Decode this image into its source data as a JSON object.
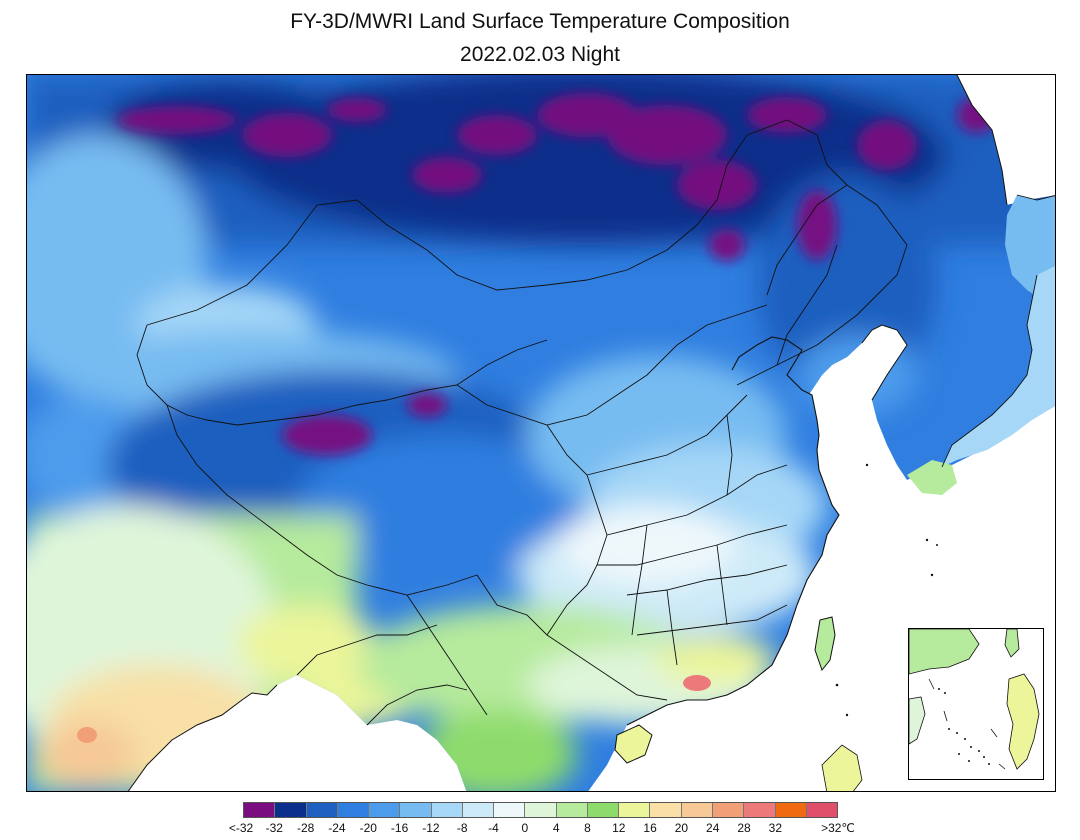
{
  "title": "FY-3D/MWRI Land Surface Temperature Composition",
  "subtitle": "2022.02.03 Night",
  "legend": {
    "colors": [
      "#7a0d7f",
      "#0b2f8a",
      "#1e5fbf",
      "#2f7ee0",
      "#4d9cec",
      "#77bcf1",
      "#a6d7f7",
      "#cdeaf8",
      "#eef8fb",
      "#dff5da",
      "#b6ea9c",
      "#8edb6c",
      "#ecf59a",
      "#f8e0a6",
      "#f6c996",
      "#f19f77",
      "#ec7a7a",
      "#f06a12",
      "#e0506a"
    ],
    "labels": [
      "<-32",
      "-32",
      "-28",
      "-24",
      "-20",
      "-16",
      "-12",
      "-8",
      "-4",
      "0",
      "4",
      "8",
      "12",
      "16",
      "20",
      "24",
      "28",
      "32",
      ">32℃"
    ]
  }
}
